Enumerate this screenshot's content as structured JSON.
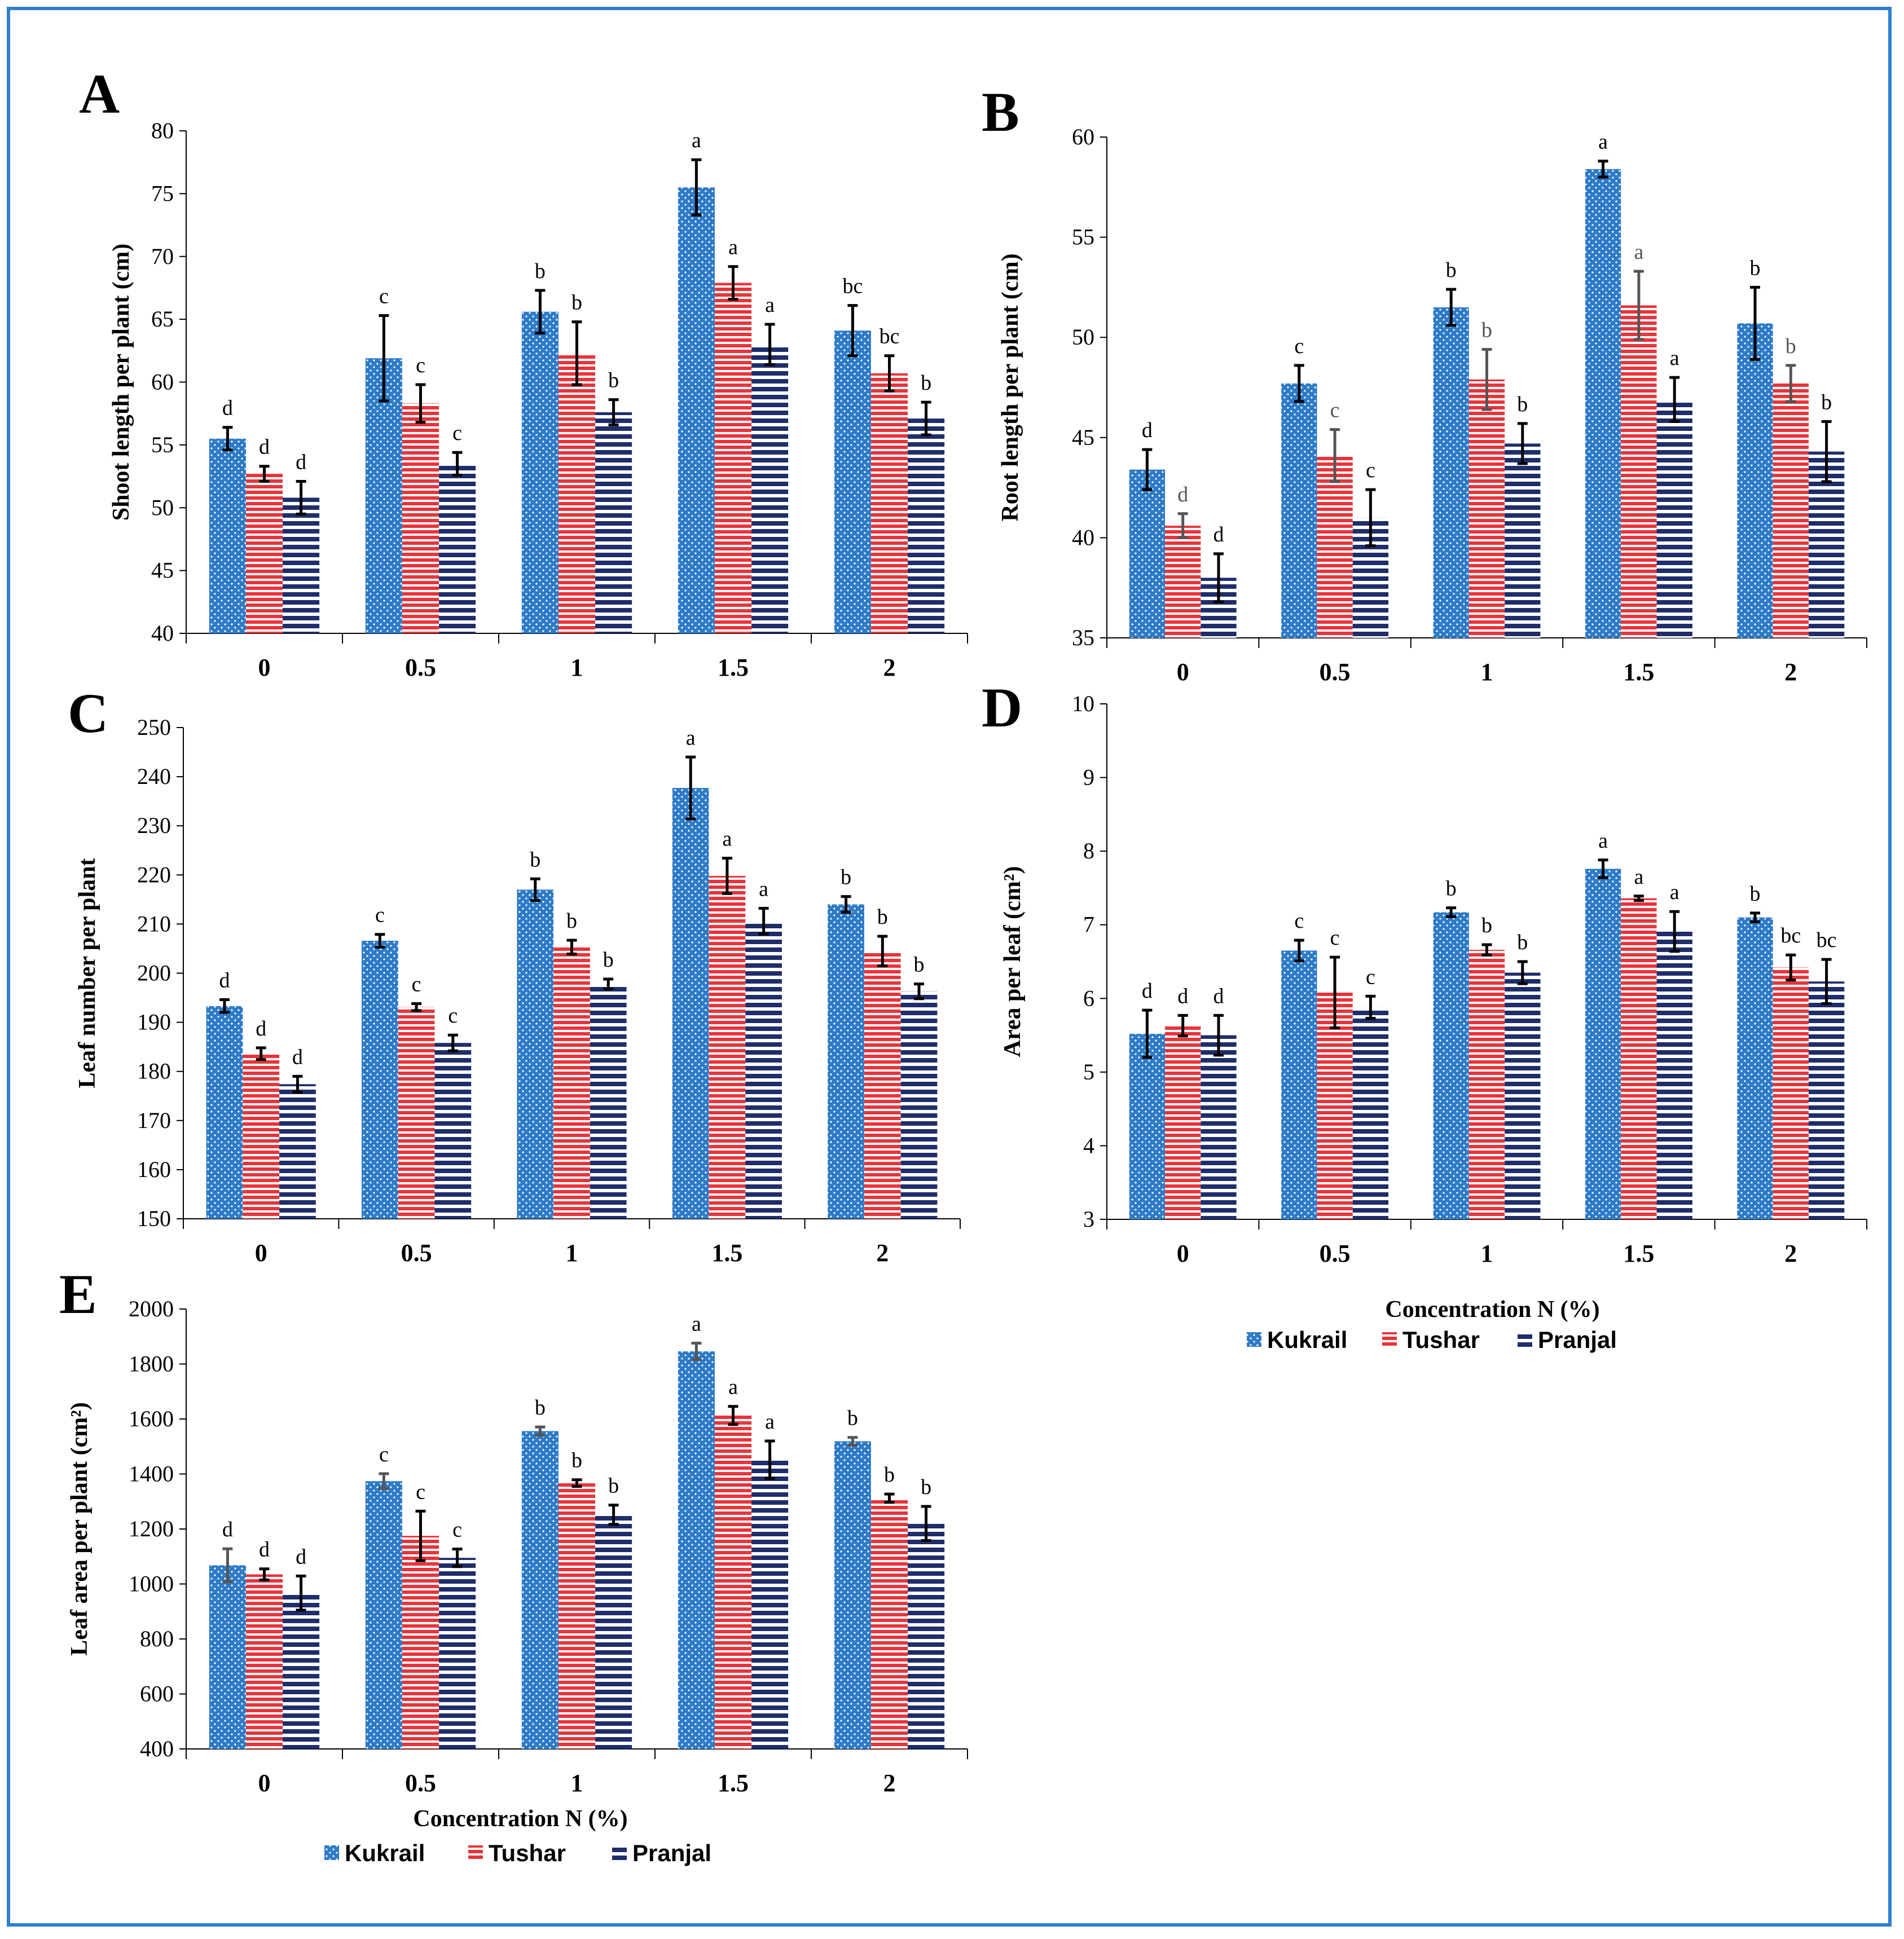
{
  "legend": {
    "series": [
      "Kukrail",
      "Tushar",
      "Pranjal"
    ]
  },
  "colors": {
    "kukrail": "#2e7bc8",
    "tushar": "#e8343a",
    "pranjal": "#1f2d6b",
    "frame": "#2f7fd0"
  },
  "chart_data": [
    {
      "panel": "A",
      "type": "bar",
      "categories": [
        "0",
        "0.5",
        "1",
        "1.5",
        "2"
      ],
      "ylabel": "Shoot length per plant (cm)",
      "xlabel": "",
      "ylim": [
        40,
        80
      ],
      "yticks": [
        "40",
        "45",
        "50",
        "55",
        "60",
        "65",
        "70",
        "75",
        "80"
      ],
      "series": [
        {
          "name": "Kukrail",
          "values": [
            55.5,
            61.9,
            65.6,
            75.5,
            64.1
          ],
          "errors": [
            0.9,
            3.4,
            1.7,
            2.2,
            2.0
          ],
          "letters": [
            "d",
            "c",
            "b",
            "a",
            "bc"
          ]
        },
        {
          "name": "Tushar",
          "values": [
            52.7,
            58.3,
            62.3,
            67.9,
            60.7
          ],
          "errors": [
            0.6,
            1.5,
            2.5,
            1.3,
            1.4
          ],
          "letters": [
            "d",
            "c",
            "b",
            "a",
            "bc"
          ]
        },
        {
          "name": "Pranjal",
          "values": [
            50.8,
            53.5,
            57.6,
            63.0,
            57.1
          ],
          "errors": [
            1.3,
            0.9,
            1.0,
            1.6,
            1.3
          ],
          "letters": [
            "d",
            "c",
            "b",
            "a",
            "b"
          ]
        }
      ]
    },
    {
      "panel": "B",
      "type": "bar",
      "categories": [
        "0",
        "0.5",
        "1",
        "1.5",
        "2"
      ],
      "ylabel": "Root length per plant (cm)",
      "xlabel": "",
      "ylim": [
        35,
        60
      ],
      "yticks": [
        "35",
        "40",
        "45",
        "50",
        "55",
        "60"
      ],
      "series": [
        {
          "name": "Kukrail",
          "values": [
            43.4,
            47.7,
            51.5,
            58.4,
            50.7
          ],
          "errors": [
            1.0,
            0.9,
            0.9,
            0.4,
            1.8
          ],
          "letters": [
            "d",
            "c",
            "b",
            "a",
            "b"
          ]
        },
        {
          "name": "Tushar",
          "values": [
            40.6,
            44.1,
            47.9,
            51.6,
            47.7
          ],
          "errors": [
            0.6,
            1.3,
            1.5,
            1.7,
            0.9
          ],
          "letters": [
            "d",
            "c",
            "b",
            "a",
            "b"
          ]
        },
        {
          "name": "Pranjal",
          "values": [
            38.0,
            41.0,
            44.7,
            46.9,
            44.3
          ],
          "errors": [
            1.2,
            1.4,
            1.0,
            1.1,
            1.5
          ],
          "letters": [
            "d",
            "c",
            "b",
            "a",
            "b"
          ]
        }
      ]
    },
    {
      "panel": "C",
      "type": "bar",
      "categories": [
        "0",
        "0.5",
        "1",
        "1.5",
        "2"
      ],
      "ylabel": "Leaf number per plant",
      "xlabel": "",
      "ylim": [
        150,
        250
      ],
      "yticks": [
        "150",
        "160",
        "170",
        "180",
        "190",
        "200",
        "210",
        "220",
        "230",
        "240",
        "250"
      ],
      "series": [
        {
          "name": "Kukrail",
          "values": [
            193.3,
            206.6,
            217.0,
            237.7,
            214.0
          ],
          "errors": [
            1.3,
            1.3,
            2.2,
            6.3,
            1.6
          ],
          "letters": [
            "d",
            "c",
            "b",
            "a",
            "b"
          ]
        },
        {
          "name": "Tushar",
          "values": [
            183.6,
            193.1,
            205.3,
            219.8,
            204.5
          ],
          "errors": [
            1.2,
            0.7,
            1.4,
            3.6,
            3.0
          ],
          "letters": [
            "d",
            "c",
            "b",
            "a",
            "b"
          ]
        },
        {
          "name": "Pranjal",
          "values": [
            177.4,
            185.8,
            197.8,
            210.6,
            196.3
          ],
          "errors": [
            1.6,
            1.6,
            1.0,
            2.6,
            1.5
          ],
          "letters": [
            "d",
            "c",
            "b",
            "a",
            "b"
          ]
        }
      ]
    },
    {
      "panel": "D",
      "type": "bar",
      "categories": [
        "0",
        "0.5",
        "1",
        "1.5",
        "2"
      ],
      "ylabel": "Area per leaf (cm²)",
      "xlabel": "Concentration N (%)",
      "ylim": [
        3,
        10
      ],
      "yticks": [
        "3",
        "4",
        "5",
        "6",
        "7",
        "8",
        "9",
        "10"
      ],
      "series": [
        {
          "name": "Kukrail",
          "values": [
            5.52,
            6.65,
            7.17,
            7.76,
            7.1
          ],
          "errors": [
            0.32,
            0.14,
            0.06,
            0.12,
            0.06
          ],
          "letters": [
            "d",
            "c",
            "b",
            "a",
            "b"
          ]
        },
        {
          "name": "Tushar",
          "values": [
            5.63,
            6.08,
            6.66,
            7.36,
            6.42
          ],
          "errors": [
            0.14,
            0.48,
            0.07,
            0.03,
            0.17
          ],
          "letters": [
            "d",
            "c",
            "b",
            "a",
            "bc"
          ]
        },
        {
          "name": "Pranjal",
          "values": [
            5.5,
            5.88,
            6.35,
            6.91,
            6.23
          ],
          "errors": [
            0.27,
            0.15,
            0.15,
            0.27,
            0.3
          ],
          "letters": [
            "d",
            "c",
            "b",
            "a",
            "bc"
          ]
        }
      ]
    },
    {
      "panel": "E",
      "type": "bar",
      "categories": [
        "0",
        "0.5",
        "1",
        "1.5",
        "2"
      ],
      "ylabel": "Leaf area per plant (cm²)",
      "xlabel": "Concentration N (%)",
      "ylim": [
        400,
        2000
      ],
      "yticks": [
        "400",
        "600",
        "800",
        "1000",
        "1200",
        "1400",
        "1600",
        "1800",
        "2000"
      ],
      "series": [
        {
          "name": "Kukrail",
          "values": [
            1068,
            1374,
            1556,
            1846,
            1519
          ],
          "errors": [
            60,
            27,
            15,
            30,
            14
          ],
          "letters": [
            "d",
            "c",
            "b",
            "a",
            "b"
          ]
        },
        {
          "name": "Tushar",
          "values": [
            1035,
            1175,
            1367,
            1613,
            1312
          ],
          "errors": [
            20,
            90,
            12,
            33,
            15
          ],
          "letters": [
            "d",
            "c",
            "b",
            "a",
            "b"
          ]
        },
        {
          "name": "Pranjal",
          "values": [
            967,
            1095,
            1252,
            1452,
            1220
          ],
          "errors": [
            62,
            32,
            35,
            68,
            62
          ],
          "letters": [
            "d",
            "c",
            "b",
            "a",
            "b"
          ]
        }
      ]
    }
  ]
}
